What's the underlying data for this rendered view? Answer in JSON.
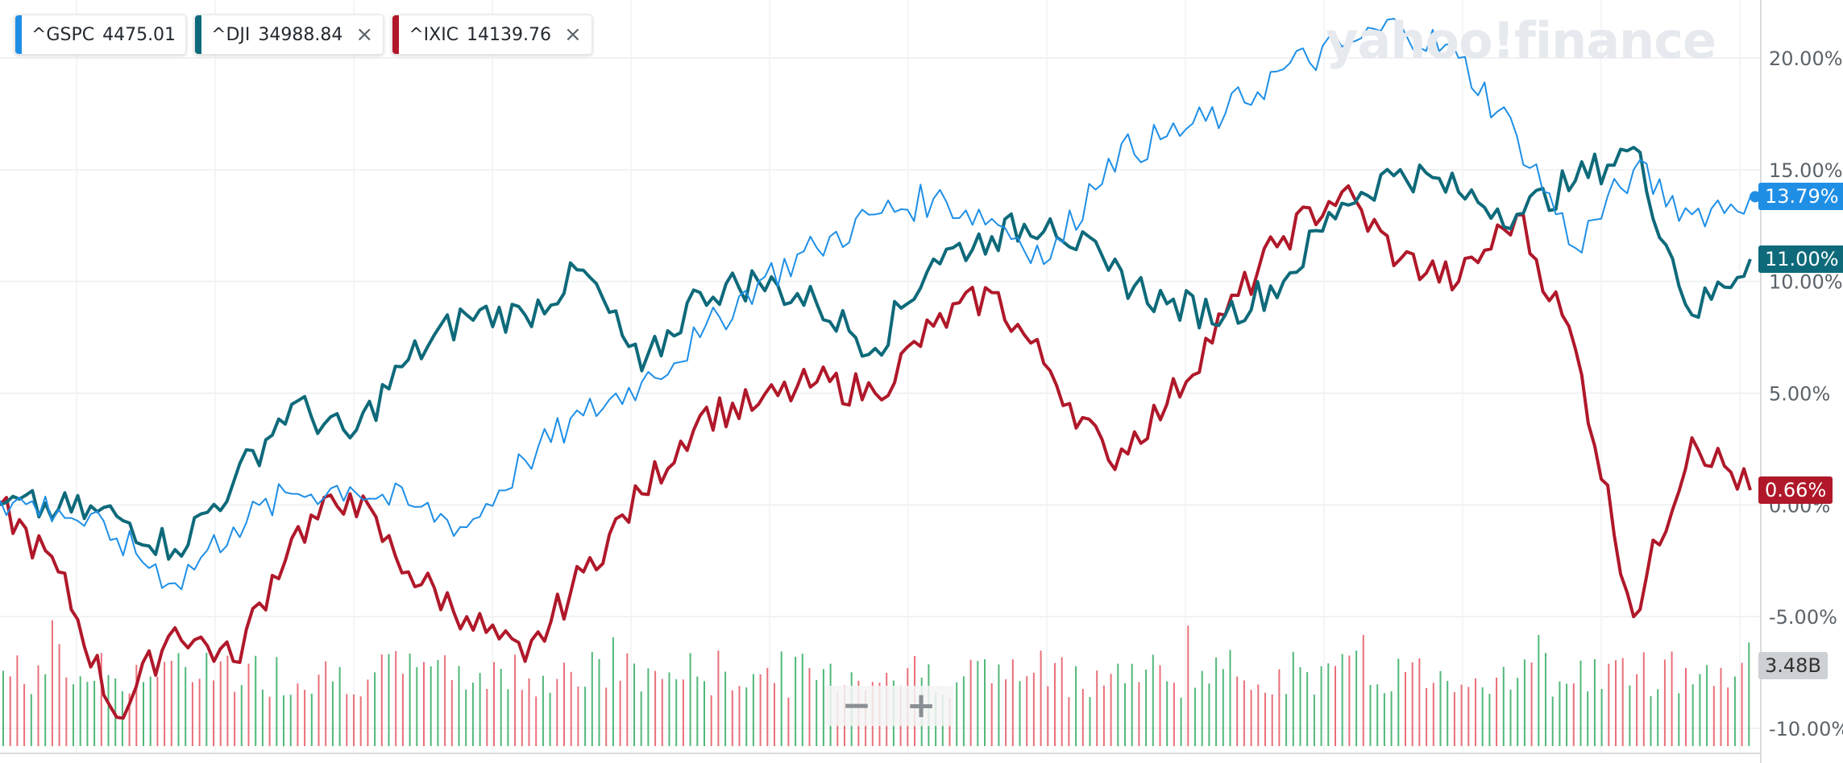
{
  "legend": [
    {
      "symbol": "^GSPC",
      "price": "4475.01",
      "color": "#1f8fe6",
      "closable": false
    },
    {
      "symbol": "^DJI",
      "price": "34988.84",
      "color": "#0e6a7a",
      "closable": true
    },
    {
      "symbol": "^IXIC",
      "price": "14139.76",
      "color": "#b0182a",
      "closable": true
    }
  ],
  "close_glyph": "×",
  "watermark": "yahoo!finance",
  "zoom": {
    "minus": "−",
    "plus": "+"
  },
  "badges": {
    "gspc": {
      "text": "13.79%",
      "color": "#1f8fe6"
    },
    "dji": {
      "text": "11.00%",
      "color": "#0e6a7a"
    },
    "ixic": {
      "text": "0.66%",
      "color": "#b0182a"
    },
    "volume": {
      "text": "3.48B",
      "color": "#cdd0d4"
    }
  },
  "chart_data": {
    "type": "line",
    "y_unit": "percent change",
    "ylim": [
      -10,
      21
    ],
    "y_ticks": [
      "20.00%",
      "15.00%",
      "10.00%",
      "5.00%",
      "0.00%",
      "-5.00%",
      "-10.00%"
    ],
    "grid": true,
    "legend_position": "top-left",
    "series": [
      {
        "name": "^GSPC",
        "color": "#1f8fe6",
        "values": [
          0.2,
          -0.2,
          -1.5,
          -3.5,
          -1.0,
          0.5,
          0.8,
          0.0,
          -1.0,
          2.0,
          4.0,
          5.5,
          7.5,
          10.0,
          11.5,
          13.0,
          13.7,
          12.8,
          11.0,
          15.5,
          16.5,
          17.5,
          19.5,
          20.5,
          21.5,
          20.0,
          16.5,
          11.5,
          15.0,
          13.0,
          13.79
        ]
      },
      {
        "name": "^DJI",
        "color": "#0e6a7a",
        "values": [
          0.0,
          -0.2,
          -0.5,
          -2.0,
          1.0,
          4.5,
          3.0,
          6.5,
          8.5,
          8.5,
          10.5,
          6.0,
          9.5,
          10.0,
          9.0,
          7.0,
          11.0,
          12.0,
          12.8,
          10.5,
          9.0,
          8.5,
          10.0,
          13.5,
          15.0,
          14.0,
          13.0,
          14.5,
          16.0,
          8.5,
          11.0
        ]
      },
      {
        "name": "^IXIC",
        "color": "#b0182a",
        "values": [
          0.0,
          -3.0,
          -9.5,
          -5.5,
          -7.0,
          -1.5,
          0.5,
          -3.0,
          -5.0,
          -7.0,
          -3.0,
          0.5,
          4.0,
          4.5,
          5.5,
          5.0,
          8.0,
          9.5,
          6.0,
          2.0,
          4.5,
          8.5,
          12.0,
          14.0,
          11.0,
          10.0,
          13.0,
          7.0,
          -5.0,
          3.0,
          0.66
        ]
      }
    ],
    "volume": {
      "last": "3.48B",
      "up_color": "#3fb06a",
      "down_color": "#e8606a"
    }
  }
}
